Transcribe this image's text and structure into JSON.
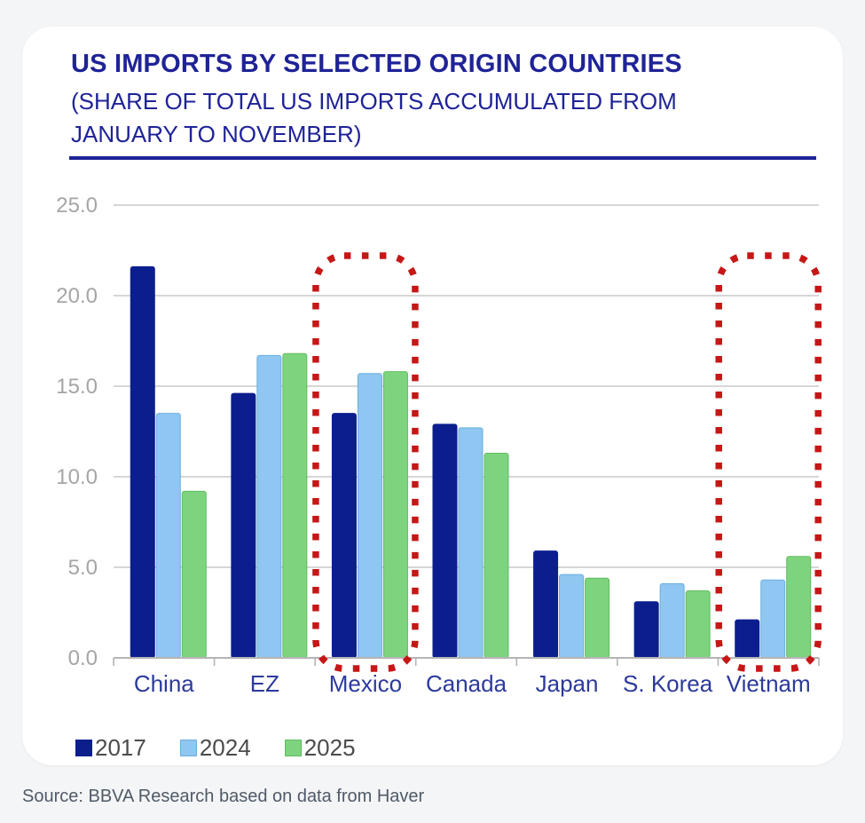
{
  "header": {
    "title": "US IMPORTS BY SELECTED ORIGIN COUNTRIES",
    "subtitle": "(SHARE OF TOTAL US IMPORTS ACCUMULATED FROM JANUARY TO NOVEMBER)"
  },
  "chart_data": {
    "type": "bar",
    "categories": [
      "China",
      "EZ",
      "Mexico",
      "Canada",
      "Japan",
      "S. Korea",
      "Vietnam"
    ],
    "series": [
      {
        "name": "2017",
        "color": "#0c1e8e",
        "border": "#0c1e8e",
        "values": [
          21.6,
          14.6,
          13.5,
          12.9,
          5.9,
          3.1,
          2.1
        ]
      },
      {
        "name": "2024",
        "color": "#8fc7f2",
        "border": "#6aaede",
        "values": [
          13.5,
          16.7,
          15.7,
          12.7,
          4.6,
          4.1,
          4.3
        ]
      },
      {
        "name": "2025",
        "color": "#7ed47e",
        "border": "#5fbc5f",
        "values": [
          9.2,
          16.8,
          15.8,
          11.3,
          4.4,
          3.7,
          5.6
        ]
      }
    ],
    "ylim": [
      0,
      25
    ],
    "ytick_step": 5,
    "ytick_labels": [
      "0.0",
      "5.0",
      "10.0",
      "15.0",
      "20.0",
      "25.0"
    ],
    "grid": true,
    "legend_position": "bottom",
    "highlighted_categories": [
      "Mexico",
      "Vietnam"
    ],
    "highlight_color": "#c61717"
  },
  "colors": {
    "grid_line": "#c8c8c8",
    "axis_line": "#b4b4b4",
    "y_tick_label": "#a5a5a5",
    "category_label": "#2c3a9c",
    "title": "#1f2397"
  },
  "footer": {
    "source": "Source: BBVA Research based on data from Haver"
  }
}
